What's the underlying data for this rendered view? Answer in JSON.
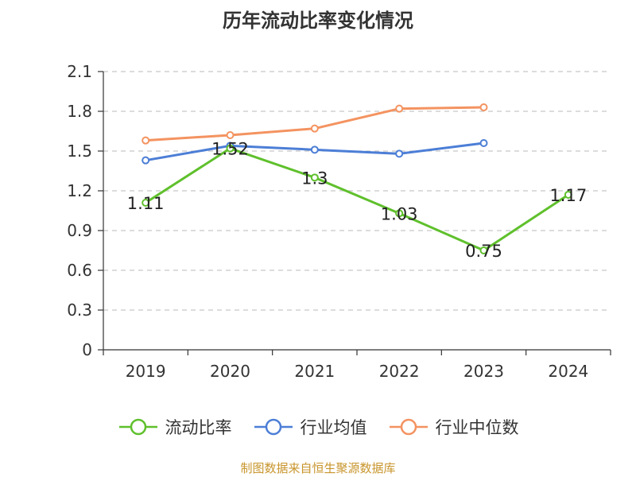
{
  "chart_data": {
    "type": "line",
    "title": "历年流动比率变化情况",
    "categories": [
      "2019",
      "2020",
      "2021",
      "2022",
      "2023",
      "2024"
    ],
    "ylim": [
      0,
      2.1
    ],
    "yticks": [
      "0",
      "0.3",
      "0.6",
      "0.9",
      "1.2",
      "1.5",
      "1.8",
      "2.1"
    ],
    "grid": true,
    "legend_position": "bottom",
    "series": [
      {
        "name": "流动比率",
        "color": "#5fc02c",
        "values": [
          1.11,
          1.52,
          1.3,
          1.03,
          0.75,
          1.17
        ],
        "labels": [
          "1.11",
          "1.52",
          "1.3",
          "1.03",
          "0.75",
          "1.17"
        ]
      },
      {
        "name": "行业均值",
        "color": "#4c7ed6",
        "values": [
          1.43,
          1.54,
          1.51,
          1.48,
          1.56,
          null
        ]
      },
      {
        "name": "行业中位数",
        "color": "#f49360",
        "values": [
          1.58,
          1.62,
          1.67,
          1.82,
          1.83,
          null
        ]
      }
    ]
  },
  "source_note": "制图数据来自恒生聚源数据库"
}
